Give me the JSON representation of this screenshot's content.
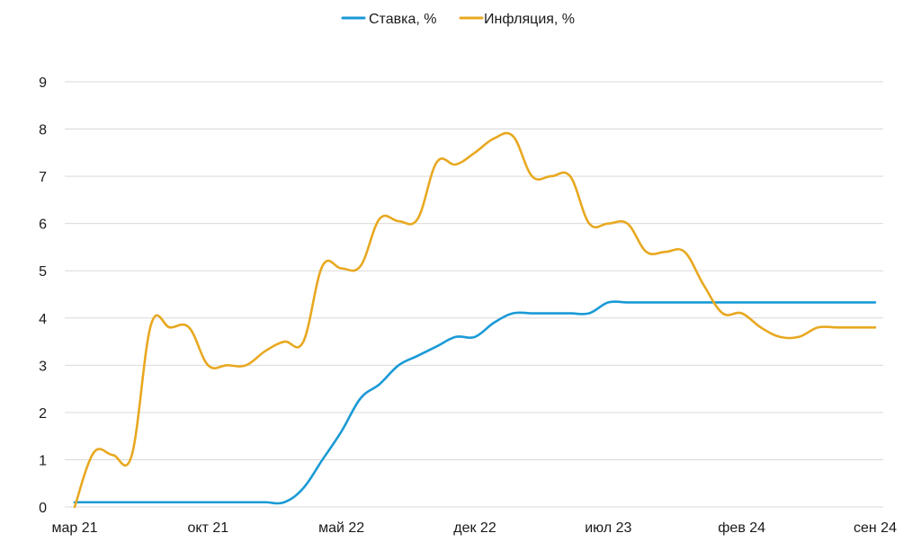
{
  "chart_data": {
    "type": "line",
    "title": "",
    "xlabel": "",
    "ylabel": "",
    "ylim": [
      0,
      9
    ],
    "yticks": [
      "0",
      "1",
      "2",
      "3",
      "4",
      "5",
      "6",
      "7",
      "8",
      "9"
    ],
    "xticks": [
      "мар 21",
      "окт 21",
      "май 22",
      "дек 22",
      "июл 23",
      "фев 24",
      "сен 24"
    ],
    "grid": true,
    "legend_position": "top-center",
    "x": [
      "2021-03",
      "2021-04",
      "2021-05",
      "2021-06",
      "2021-07",
      "2021-08",
      "2021-09",
      "2021-10",
      "2021-11",
      "2021-12",
      "2022-01",
      "2022-02",
      "2022-03",
      "2022-04",
      "2022-05",
      "2022-06",
      "2022-07",
      "2022-08",
      "2022-09",
      "2022-10",
      "2022-11",
      "2022-12",
      "2023-01",
      "2023-02",
      "2023-03",
      "2023-04",
      "2023-05",
      "2023-06",
      "2023-07",
      "2023-08",
      "2023-09",
      "2023-10",
      "2023-11",
      "2023-12",
      "2024-01",
      "2024-02",
      "2024-03",
      "2024-04",
      "2024-05",
      "2024-06",
      "2024-07",
      "2024-08",
      "2024-09"
    ],
    "series": [
      {
        "name": "Ставка, %",
        "color": "#1a9ad6",
        "values": [
          0.1,
          0.1,
          0.1,
          0.1,
          0.1,
          0.1,
          0.1,
          0.1,
          0.1,
          0.1,
          0.1,
          0.1,
          0.4,
          1.0,
          1.6,
          2.3,
          2.6,
          3.0,
          3.2,
          3.4,
          3.6,
          3.6,
          3.9,
          4.1,
          4.1,
          4.1,
          4.1,
          4.1,
          4.33,
          4.33,
          4.33,
          4.33,
          4.33,
          4.33,
          4.33,
          4.33,
          4.33,
          4.33,
          4.33,
          4.33,
          4.33,
          4.33,
          4.33
        ]
      },
      {
        "name": "Инфляция, %",
        "color": "#e8a820",
        "values": [
          0.0,
          1.15,
          1.1,
          1.1,
          3.85,
          3.8,
          3.8,
          3.0,
          3.0,
          3.0,
          3.3,
          3.5,
          3.5,
          5.1,
          5.05,
          5.1,
          6.1,
          6.05,
          6.1,
          7.3,
          7.25,
          7.5,
          7.8,
          7.85,
          7.0,
          7.0,
          7.0,
          6.0,
          6.0,
          6.0,
          5.4,
          5.4,
          5.4,
          4.7,
          4.1,
          4.1,
          3.8,
          3.6,
          3.6,
          3.8,
          3.8,
          3.8,
          3.8
        ]
      }
    ]
  }
}
